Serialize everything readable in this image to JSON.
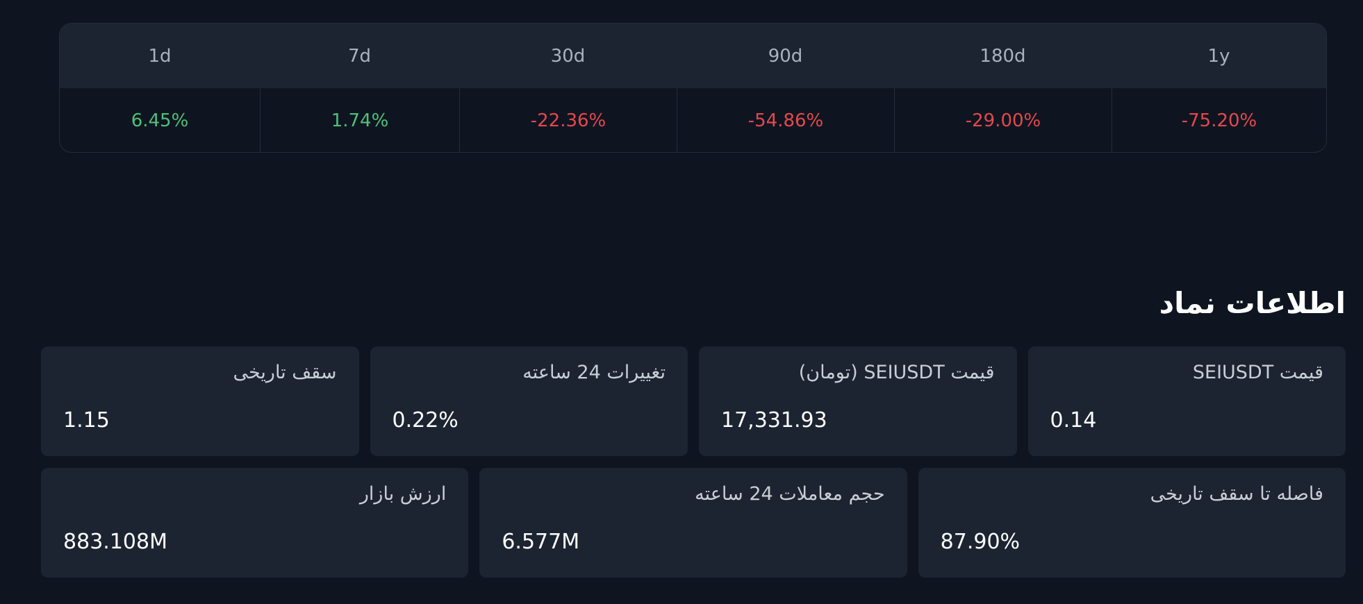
{
  "table": {
    "headers": [
      "1d",
      "7d",
      "30d",
      "90d",
      "180d",
      "1y"
    ],
    "values": [
      "6.45%",
      "1.74%",
      "-22.36%",
      "-54.86%",
      "-29.00%",
      "-75.20%"
    ]
  },
  "section": {
    "title": "اطلاعات نماد"
  },
  "cards": [
    [
      {
        "label": "قیمت SEIUSDT",
        "value": "0.14"
      },
      {
        "label": "قیمت SEIUSDT (تومان)",
        "value": "17,331.93"
      },
      {
        "label": "تغییرات 24 ساعته",
        "value": "0.22%"
      },
      {
        "label": "سقف تاریخی",
        "value": "1.15"
      }
    ],
    [
      {
        "label": "فاصله تا سقف تاریخی",
        "value": "87.90%"
      },
      {
        "label": "حجم معاملات 24 ساعته",
        "value": "6.577M"
      },
      {
        "label": "ارزش بازار",
        "value": "883.108M"
      }
    ]
  ]
}
